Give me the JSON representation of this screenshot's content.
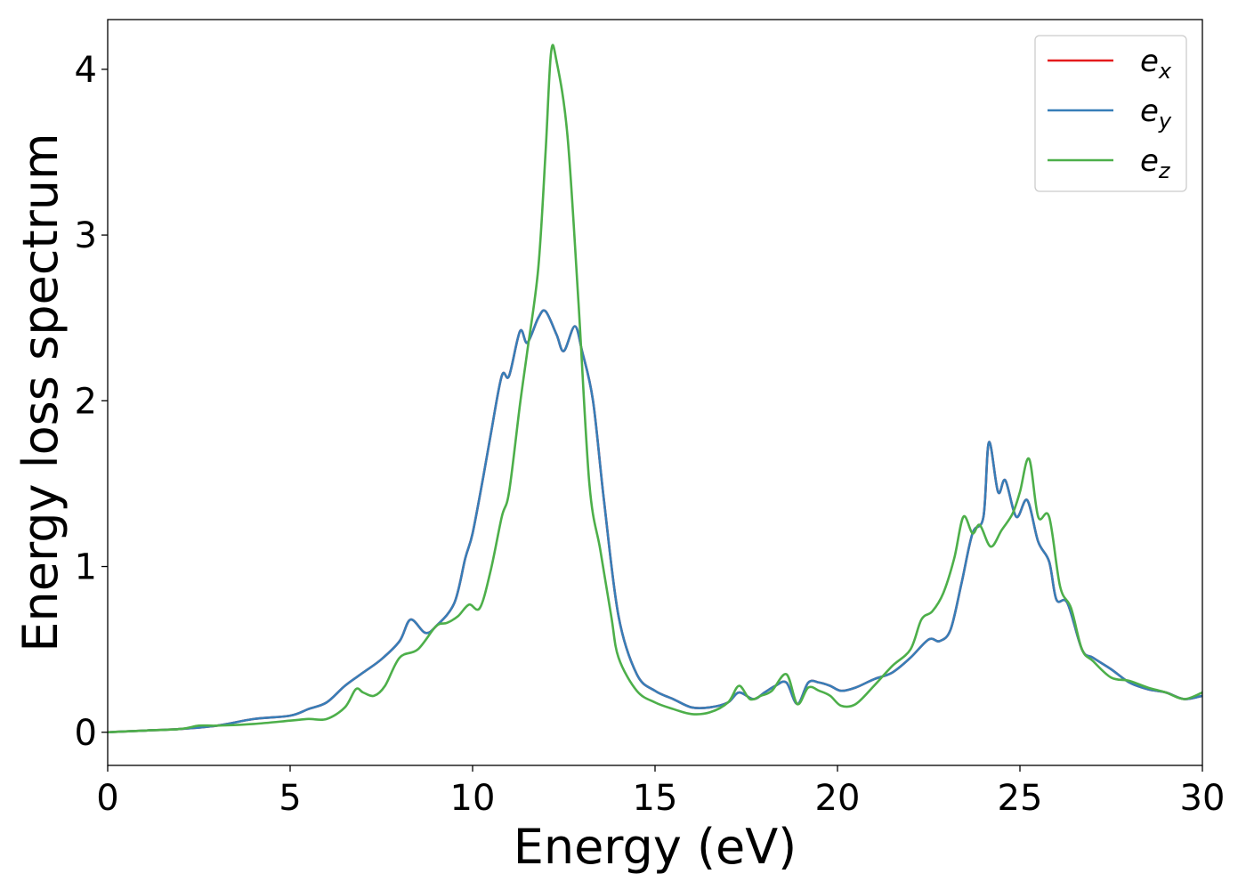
{
  "chart_data": {
    "type": "line",
    "xlabel": "Energy (eV)",
    "ylabel": "Energy loss spectrum",
    "xlim": [
      0,
      30
    ],
    "ylim": [
      -0.2,
      4.3
    ],
    "xticks": [
      0,
      5,
      10,
      15,
      20,
      25,
      30
    ],
    "yticks": [
      0,
      1,
      2,
      3,
      4
    ],
    "grid": false,
    "legend_position": "top-right",
    "series": [
      {
        "name": "e_x",
        "legend_base": "e",
        "legend_sub": "x",
        "color": "#e41a1c",
        "x": [
          0,
          1,
          2,
          3,
          4,
          5,
          5.5,
          6,
          6.5,
          7,
          7.5,
          8,
          8.3,
          8.7,
          9,
          9.5,
          9.8,
          10,
          10.3,
          10.5,
          10.8,
          11,
          11.3,
          11.5,
          11.8,
          12,
          12.3,
          12.5,
          12.8,
          13,
          13.3,
          13.6,
          14,
          14.5,
          15,
          15.5,
          16,
          16.5,
          17,
          17.3,
          17.7,
          18,
          18.3,
          18.6,
          18.9,
          19.2,
          19.5,
          19.8,
          20.1,
          20.5,
          21,
          21.5,
          22,
          22.5,
          22.8,
          23.1,
          23.4,
          23.7,
          24,
          24.15,
          24.4,
          24.6,
          24.9,
          25.2,
          25.5,
          25.8,
          26,
          26.3,
          26.7,
          27,
          27.5,
          28,
          28.5,
          29,
          29.5,
          30
        ],
        "y": [
          0,
          0.01,
          0.02,
          0.04,
          0.08,
          0.1,
          0.14,
          0.18,
          0.28,
          0.36,
          0.44,
          0.55,
          0.68,
          0.6,
          0.64,
          0.78,
          1.05,
          1.2,
          1.55,
          1.8,
          2.15,
          2.15,
          2.42,
          2.35,
          2.5,
          2.54,
          2.4,
          2.3,
          2.45,
          2.3,
          2.0,
          1.4,
          0.7,
          0.35,
          0.25,
          0.2,
          0.15,
          0.15,
          0.18,
          0.24,
          0.2,
          0.24,
          0.28,
          0.3,
          0.17,
          0.3,
          0.3,
          0.28,
          0.25,
          0.27,
          0.32,
          0.36,
          0.45,
          0.56,
          0.55,
          0.62,
          0.9,
          1.2,
          1.3,
          1.75,
          1.45,
          1.52,
          1.3,
          1.4,
          1.15,
          1.03,
          0.8,
          0.78,
          0.5,
          0.45,
          0.38,
          0.3,
          0.26,
          0.24,
          0.2,
          0.22
        ]
      },
      {
        "name": "e_y",
        "legend_base": "e",
        "legend_sub": "y",
        "color": "#377eb8",
        "x": [
          0,
          1,
          2,
          3,
          4,
          5,
          5.5,
          6,
          6.5,
          7,
          7.5,
          8,
          8.3,
          8.7,
          9,
          9.5,
          9.8,
          10,
          10.3,
          10.5,
          10.8,
          11,
          11.3,
          11.5,
          11.8,
          12,
          12.3,
          12.5,
          12.8,
          13,
          13.3,
          13.6,
          14,
          14.5,
          15,
          15.5,
          16,
          16.5,
          17,
          17.3,
          17.7,
          18,
          18.3,
          18.6,
          18.9,
          19.2,
          19.5,
          19.8,
          20.1,
          20.5,
          21,
          21.5,
          22,
          22.5,
          22.8,
          23.1,
          23.4,
          23.7,
          24,
          24.15,
          24.4,
          24.6,
          24.9,
          25.2,
          25.5,
          25.8,
          26,
          26.3,
          26.7,
          27,
          27.5,
          28,
          28.5,
          29,
          29.5,
          30
        ],
        "y": [
          0,
          0.01,
          0.02,
          0.04,
          0.08,
          0.1,
          0.14,
          0.18,
          0.28,
          0.36,
          0.44,
          0.55,
          0.68,
          0.6,
          0.64,
          0.78,
          1.05,
          1.2,
          1.55,
          1.8,
          2.15,
          2.15,
          2.42,
          2.35,
          2.5,
          2.54,
          2.4,
          2.3,
          2.45,
          2.3,
          2.0,
          1.4,
          0.7,
          0.35,
          0.25,
          0.2,
          0.15,
          0.15,
          0.18,
          0.24,
          0.2,
          0.24,
          0.28,
          0.3,
          0.17,
          0.3,
          0.3,
          0.28,
          0.25,
          0.27,
          0.32,
          0.36,
          0.45,
          0.56,
          0.55,
          0.62,
          0.9,
          1.2,
          1.3,
          1.75,
          1.45,
          1.52,
          1.3,
          1.4,
          1.15,
          1.03,
          0.8,
          0.78,
          0.5,
          0.45,
          0.38,
          0.3,
          0.26,
          0.24,
          0.2,
          0.22
        ]
      },
      {
        "name": "e_z",
        "legend_base": "e",
        "legend_sub": "z",
        "color": "#4daf4a",
        "x": [
          0,
          1,
          2,
          2.5,
          3,
          4,
          5,
          5.5,
          6,
          6.5,
          6.8,
          7,
          7.3,
          7.6,
          8,
          8.5,
          9,
          9.3,
          9.6,
          9.9,
          10.2,
          10.5,
          10.8,
          11,
          11.3,
          11.5,
          11.8,
          12,
          12.15,
          12.3,
          12.6,
          12.9,
          13.2,
          13.5,
          13.8,
          14,
          14.5,
          15,
          15.5,
          16,
          16.5,
          17,
          17.3,
          17.6,
          17.9,
          18.2,
          18.6,
          18.9,
          19.2,
          19.5,
          19.8,
          20.1,
          20.5,
          21,
          21.5,
          22,
          22.3,
          22.6,
          22.9,
          23.2,
          23.45,
          23.7,
          23.9,
          24.2,
          24.5,
          24.8,
          25,
          25.25,
          25.5,
          25.8,
          26.1,
          26.4,
          26.7,
          27,
          27.5,
          28,
          28.5,
          29,
          29.5,
          30
        ],
        "y": [
          0,
          0.01,
          0.02,
          0.04,
          0.04,
          0.05,
          0.07,
          0.08,
          0.08,
          0.15,
          0.26,
          0.24,
          0.22,
          0.28,
          0.45,
          0.5,
          0.64,
          0.66,
          0.7,
          0.77,
          0.75,
          0.98,
          1.3,
          1.45,
          1.98,
          2.3,
          2.8,
          3.5,
          4.1,
          4.05,
          3.6,
          2.6,
          1.5,
          1.1,
          0.7,
          0.45,
          0.25,
          0.18,
          0.14,
          0.11,
          0.12,
          0.18,
          0.28,
          0.2,
          0.22,
          0.25,
          0.35,
          0.17,
          0.27,
          0.25,
          0.22,
          0.16,
          0.17,
          0.28,
          0.4,
          0.5,
          0.68,
          0.73,
          0.84,
          1.05,
          1.3,
          1.2,
          1.25,
          1.12,
          1.22,
          1.32,
          1.45,
          1.65,
          1.3,
          1.3,
          0.88,
          0.75,
          0.5,
          0.43,
          0.33,
          0.31,
          0.27,
          0.24,
          0.2,
          0.24
        ]
      }
    ]
  }
}
